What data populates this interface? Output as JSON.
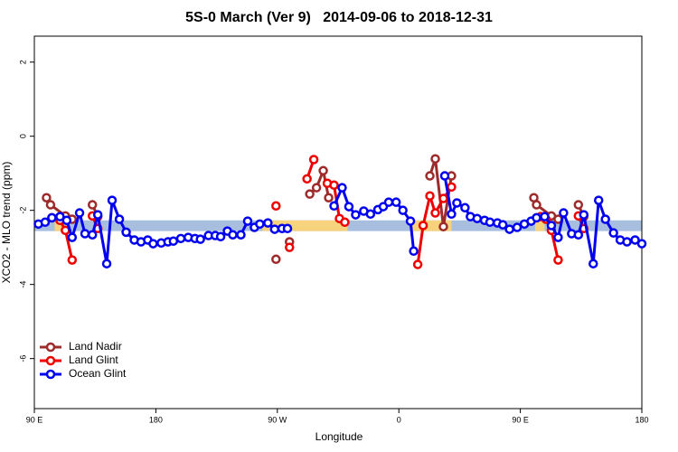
{
  "chart_data": {
    "type": "line",
    "title": "5S-0 March (Ver 9)   2014-09-06 to 2018-12-31",
    "xlabel": "Longitude",
    "ylabel": "XCO2 - MLO trend (ppm)",
    "xlim": [
      90,
      540
    ],
    "ylim": [
      -7.35,
      2.7
    ],
    "xticks": [
      {
        "value": 90,
        "label": "90 E"
      },
      180,
      {
        "value": 270,
        "label": "90 W"
      },
      {
        "value": 360,
        "label": "0"
      },
      {
        "value": 450,
        "label": "90 E"
      },
      {
        "value": 540,
        "label": "180"
      }
    ],
    "yticks": [
      2,
      0,
      -2,
      -4,
      -6
    ],
    "legend": "bottom-left",
    "reference_band": {
      "y": [
        -2.56,
        -2.27
      ],
      "segments": [
        {
          "x": [
            90,
            540
          ],
          "color": "#a7bedf"
        },
        {
          "x": [
            105,
            113
          ],
          "color": "#f6d37c"
        },
        {
          "x": [
            259,
            322
          ],
          "color": "#f6d37c"
        },
        {
          "x": [
            369,
            399
          ],
          "color": "#f6d37c"
        },
        {
          "x": [
            461,
            468
          ],
          "color": "#f6d37c"
        }
      ]
    },
    "series": [
      {
        "name": "Land Nadir",
        "color": "#9e2b2b",
        "x": [
          99,
          102,
          113,
          118,
          null,
          133,
          137,
          null,
          269,
          null,
          279,
          null,
          294,
          299,
          304,
          308,
          null,
          383,
          387,
          393,
          399,
          null,
          460,
          462,
          473,
          478,
          null,
          493,
          497
        ],
        "values": [
          -1.66,
          -1.85,
          -2.15,
          -2.24,
          null,
          -1.85,
          -2.17,
          null,
          -3.32,
          null,
          -2.85,
          null,
          -1.56,
          -1.39,
          -0.93,
          -1.66,
          null,
          -1.07,
          -0.61,
          -2.44,
          -1.07,
          null,
          -1.66,
          -1.85,
          -2.15,
          -2.24,
          null,
          -1.85,
          -2.17
        ]
      },
      {
        "name": "Land Glint",
        "color": "#ee0000",
        "x": [
          103,
          109,
          113,
          118,
          null,
          133,
          137,
          null,
          269,
          null,
          279,
          null,
          292,
          297,
          null,
          307,
          312,
          316,
          320,
          null,
          374,
          378,
          383,
          387,
          393,
          399,
          null,
          465,
          469,
          473,
          478,
          null,
          493,
          497
        ],
        "values": [
          -2.2,
          -2.27,
          -2.54,
          -3.34,
          null,
          -2.15,
          -2.49,
          null,
          -1.88,
          null,
          -3.0,
          null,
          -1.15,
          -0.63,
          null,
          -1.27,
          -1.32,
          -2.22,
          -2.32,
          null,
          -3.46,
          -2.41,
          -1.61,
          -2.07,
          -1.68,
          -1.37,
          null,
          -2.17,
          -2.24,
          -2.54,
          -3.34,
          null,
          -2.15,
          -2.49
        ]
      },
      {
        "name": "Ocean Glint",
        "color": "#0000ee",
        "x": [
          93,
          98,
          103,
          109,
          114,
          118,
          123.5,
          127.5,
          133,
          137,
          143.6,
          147.6,
          153,
          158,
          164,
          169,
          174,
          178,
          184,
          189,
          193,
          198.5,
          204,
          209,
          213,
          219,
          224,
          228,
          233,
          237,
          243,
          248,
          253,
          257,
          263,
          268,
          273.5,
          277.5,
          null,
          312,
          318,
          323,
          328,
          334,
          339,
          344.5,
          348.5,
          352.5,
          358,
          363,
          368.6,
          371,
          null,
          394,
          399,
          403,
          409,
          413,
          418,
          423.5,
          427.5,
          433,
          437,
          442,
          447.6,
          453,
          458,
          462,
          468,
          473,
          478,
          482,
          488,
          493,
          497,
          504,
          508,
          513,
          519,
          524,
          529,
          535,
          540
        ],
        "values": [
          -2.37,
          -2.32,
          -2.2,
          -2.17,
          -2.27,
          -2.73,
          -2.07,
          -2.63,
          -2.66,
          -2.12,
          -3.44,
          -1.73,
          -2.24,
          -2.59,
          -2.8,
          -2.85,
          -2.8,
          -2.9,
          -2.88,
          -2.85,
          -2.83,
          -2.76,
          -2.73,
          -2.76,
          -2.78,
          -2.68,
          -2.68,
          -2.71,
          -2.56,
          -2.66,
          -2.66,
          -2.29,
          -2.46,
          -2.37,
          -2.34,
          -2.51,
          -2.49,
          -2.49,
          null,
          -1.88,
          -1.39,
          -1.9,
          -2.12,
          -2.02,
          -2.1,
          -1.98,
          -1.9,
          -1.78,
          -1.78,
          -2.0,
          -2.29,
          -3.1,
          null,
          -1.07,
          -2.1,
          -1.8,
          -1.93,
          -2.17,
          -2.22,
          -2.27,
          -2.32,
          -2.34,
          -2.39,
          -2.51,
          -2.46,
          -2.37,
          -2.29,
          -2.2,
          -2.17,
          -2.41,
          -2.73,
          -2.07,
          -2.63,
          -2.66,
          -2.12,
          -3.44,
          -1.73,
          -2.24,
          -2.61,
          -2.8,
          -2.85,
          -2.8,
          -2.9
        ]
      }
    ]
  }
}
